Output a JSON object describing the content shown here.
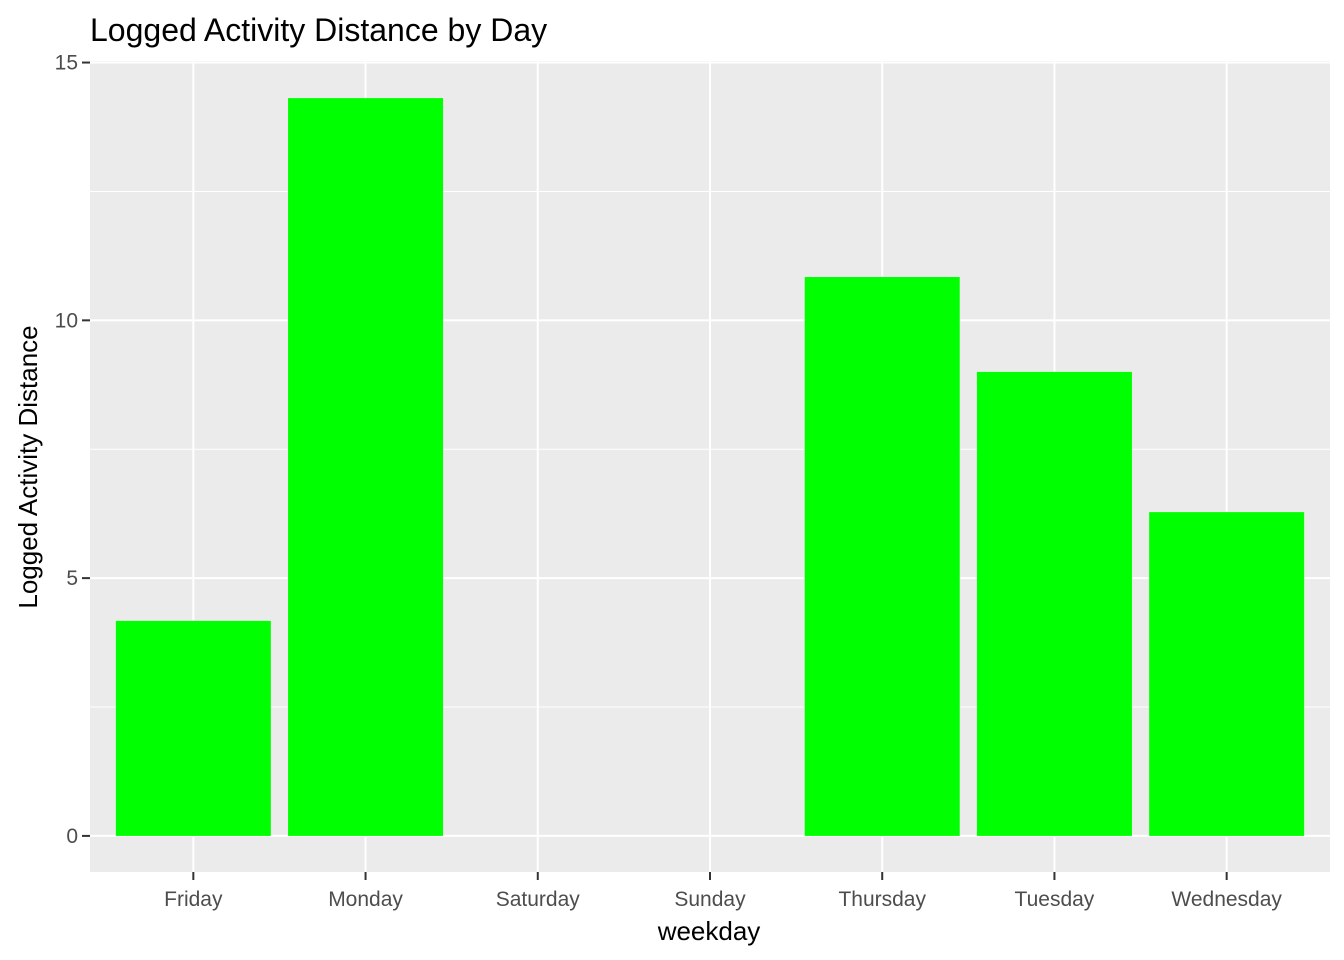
{
  "chart_data": {
    "type": "bar",
    "title": "Logged Activity Distance by Day",
    "xlabel": "weekday",
    "ylabel": "Logged Activity Distance",
    "categories": [
      "Friday",
      "Monday",
      "Saturday",
      "Sunday",
      "Thursday",
      "Tuesday",
      "Wednesday"
    ],
    "values": [
      4.17,
      14.31,
      0,
      0,
      10.84,
      9.0,
      6.28
    ],
    "ylim": [
      -0.7,
      15.03
    ],
    "yticks": [
      0,
      5,
      10,
      15
    ],
    "ytick_labels": [
      "0",
      "5",
      "10",
      "15"
    ],
    "bar_color": "#00ff00",
    "panel_background": "#ebebeb",
    "grid_color": "#ffffff",
    "grid": true,
    "legend": "none"
  }
}
